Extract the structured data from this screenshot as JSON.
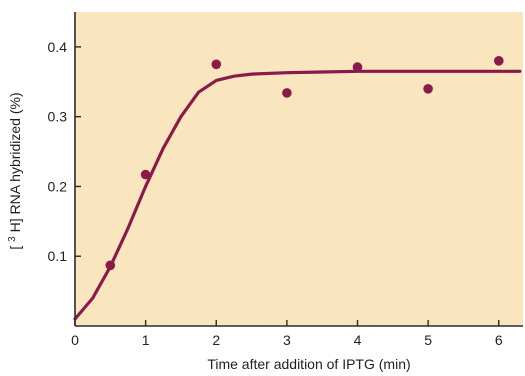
{
  "chart_data": {
    "type": "scatter",
    "xlabel": "Time after addition of IPTG (min)",
    "ylabel": {
      "prefix": "[",
      "superscript": "3",
      "suffix": "H] RNA hybridized (%)"
    },
    "xlim": [
      0,
      6.4
    ],
    "ylim": [
      0,
      0.45
    ],
    "x_ticks": [
      0,
      1,
      2,
      3,
      4,
      5,
      6
    ],
    "x_tick_labels": [
      "0",
      "1",
      "2",
      "3",
      "4",
      "5",
      "6"
    ],
    "y_ticks": [
      0.1,
      0.2,
      0.3,
      0.4
    ],
    "y_tick_labels": [
      "0.1",
      "0.2",
      "0.3",
      "0.4"
    ],
    "grid": false,
    "legend": "none",
    "series": [
      {
        "kind": "points",
        "x": [
          0.5,
          1.0,
          2.0,
          3.0,
          4.0,
          5.0,
          6.0
        ],
        "y": [
          0.087,
          0.217,
          0.375,
          0.334,
          0.371,
          0.34,
          0.38
        ]
      },
      {
        "kind": "fitted-curve",
        "x": [
          0.0,
          0.25,
          0.5,
          0.75,
          1.0,
          1.25,
          1.5,
          1.75,
          2.0,
          2.25,
          2.5,
          3.0,
          3.5,
          4.0,
          5.0,
          6.0,
          6.3
        ],
        "y": [
          0.01,
          0.04,
          0.085,
          0.14,
          0.2,
          0.255,
          0.3,
          0.335,
          0.352,
          0.358,
          0.361,
          0.363,
          0.364,
          0.365,
          0.365,
          0.365,
          0.365
        ]
      }
    ],
    "colors": {
      "plot_background": "#f9e6bf",
      "marker": "#8a1a4a",
      "curve": "#8a1a4a",
      "axis": "#2b2b2b",
      "text": "#1f1f1f"
    }
  }
}
